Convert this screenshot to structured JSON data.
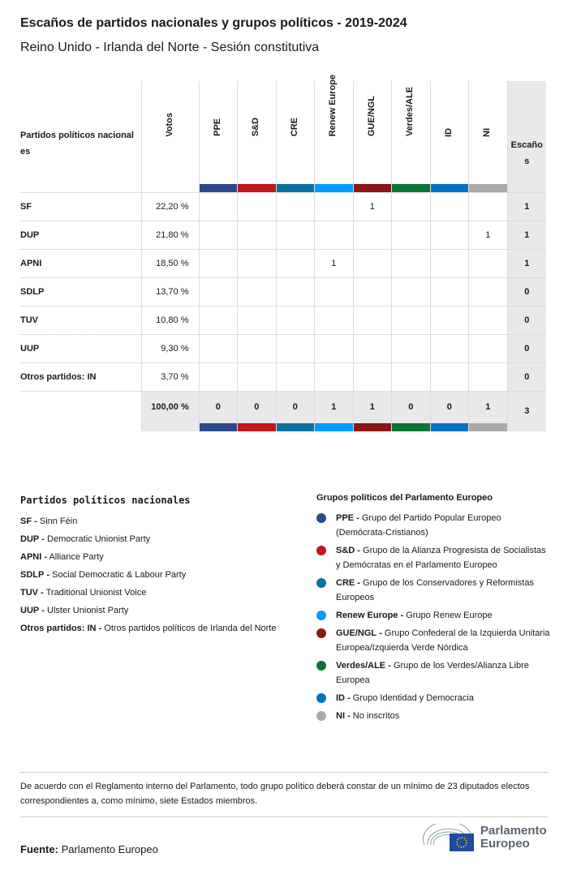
{
  "title": "Escaños de partidos nacionales y grupos políticos - 2019-2024",
  "subtitle": "Reino Unido - Irlanda del Norte - Sesión constitutiva",
  "chart_data": {
    "type": "table",
    "party_header": "Partidos políticos nacional es",
    "votes_header": "Votos",
    "seats_header": "Escaño s",
    "groups": [
      {
        "name": "PPE",
        "color": "#2b4a8c"
      },
      {
        "name": "S&D",
        "color": "#c0181b"
      },
      {
        "name": "CRE",
        "color": "#0a72a0"
      },
      {
        "name": "Renew Europe",
        "color": "#0099ff"
      },
      {
        "name": "GUE/NGL",
        "color": "#8b1613"
      },
      {
        "name": "Verdes/ALE",
        "color": "#0a7533"
      },
      {
        "name": "ID",
        "color": "#0073c8"
      },
      {
        "name": "NI",
        "color": "#aaaaaa"
      }
    ],
    "rows": [
      {
        "party": "SF",
        "votes": "22,20 %",
        "seats": [
          "",
          "",
          "",
          "",
          "1",
          "",
          "",
          ""
        ],
        "total": "1"
      },
      {
        "party": "DUP",
        "votes": "21,80 %",
        "seats": [
          "",
          "",
          "",
          "",
          "",
          "",
          "",
          "1"
        ],
        "total": "1"
      },
      {
        "party": "APNI",
        "votes": "18,50 %",
        "seats": [
          "",
          "",
          "",
          "1",
          "",
          "",
          "",
          ""
        ],
        "total": "1"
      },
      {
        "party": "SDLP",
        "votes": "13,70 %",
        "seats": [
          "",
          "",
          "",
          "",
          "",
          "",
          "",
          ""
        ],
        "total": "0"
      },
      {
        "party": "TUV",
        "votes": "10,80 %",
        "seats": [
          "",
          "",
          "",
          "",
          "",
          "",
          "",
          ""
        ],
        "total": "0"
      },
      {
        "party": "UUP",
        "votes": "9,30 %",
        "seats": [
          "",
          "",
          "",
          "",
          "",
          "",
          "",
          ""
        ],
        "total": "0"
      },
      {
        "party": "Otros partidos: IN",
        "votes": "3,70 %",
        "seats": [
          "",
          "",
          "",
          "",
          "",
          "",
          "",
          ""
        ],
        "total": "0"
      }
    ],
    "totals": {
      "votes": "100,00 %",
      "seats": [
        "0",
        "0",
        "0",
        "1",
        "1",
        "0",
        "0",
        "1"
      ],
      "total": "3"
    }
  },
  "legend_national": {
    "title": "Partidos políticos nacionales",
    "items": [
      {
        "abbr": "SF",
        "name": "Sinn Féin"
      },
      {
        "abbr": "DUP",
        "name": "Democratic Unionist Party"
      },
      {
        "abbr": "APNI",
        "name": "Alliance Party"
      },
      {
        "abbr": "SDLP",
        "name": "Social Democratic & Labour Party"
      },
      {
        "abbr": "TUV",
        "name": "Traditional Unionist Voice"
      },
      {
        "abbr": "UUP",
        "name": "Ulster Unionist Party"
      },
      {
        "abbr": "Otros partidos: IN",
        "name": "Otros partidos políticos de Irlanda del Norte"
      }
    ]
  },
  "legend_groups": {
    "title": "Grupos políticos del Parlamento Europeo",
    "items": [
      {
        "abbr": "PPE",
        "name": "Grupo del Partido Popular Europeo (Demócrata-Cristianos)"
      },
      {
        "abbr": "S&D",
        "name": "Grupo de la Alianza Progresista de Socialistas y Demócratas en el Parlamento Europeo"
      },
      {
        "abbr": "CRE",
        "name": "Grupo de los Conservadores y Reformistas Europeos"
      },
      {
        "abbr": "Renew Europe",
        "name": "Grupo Renew Europe"
      },
      {
        "abbr": "GUE/NGL",
        "name": "Grupo Confederal de la Izquierda Unitaria Europea/Izquierda Verde Nórdica"
      },
      {
        "abbr": "Verdes/ALE",
        "name": "Grupo de los Verdes/Alianza Libre Europea"
      },
      {
        "abbr": "ID",
        "name": "Grupo Identidad y Democracia"
      },
      {
        "abbr": "NI",
        "name": "No inscritos"
      }
    ]
  },
  "note": "De acuerdo con el Reglamento interno del Parlamento, todo grupo político deberá constar de un mínimo de 23 diputados electos correspondientes a, como mínimo, siete Estados miembros.",
  "source_label": "Fuente:",
  "source": "Parlamento Europeo",
  "logo_text": "Parlamento Europeo"
}
